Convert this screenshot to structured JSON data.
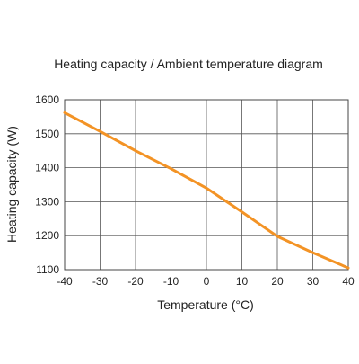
{
  "chart_data": {
    "type": "line",
    "title": "Heating capacity / Ambient temperature diagram",
    "xlabel": "Temperature (°C)",
    "ylabel": "Heating capacity (W)",
    "xlim": [
      -40,
      40
    ],
    "ylim": [
      1100,
      1600
    ],
    "xticks": [
      -40,
      -30,
      -20,
      -10,
      0,
      10,
      20,
      30,
      40
    ],
    "yticks": [
      1100,
      1200,
      1300,
      1400,
      1500,
      1600
    ],
    "grid": true,
    "line_color": "#F39325",
    "series": [
      {
        "x": [
          -40,
          -30,
          -20,
          -10,
          0,
          10,
          20,
          30,
          40
        ],
        "y": [
          1562,
          1507,
          1450,
          1397,
          1340,
          1270,
          1198,
          1150,
          1105
        ]
      }
    ]
  }
}
